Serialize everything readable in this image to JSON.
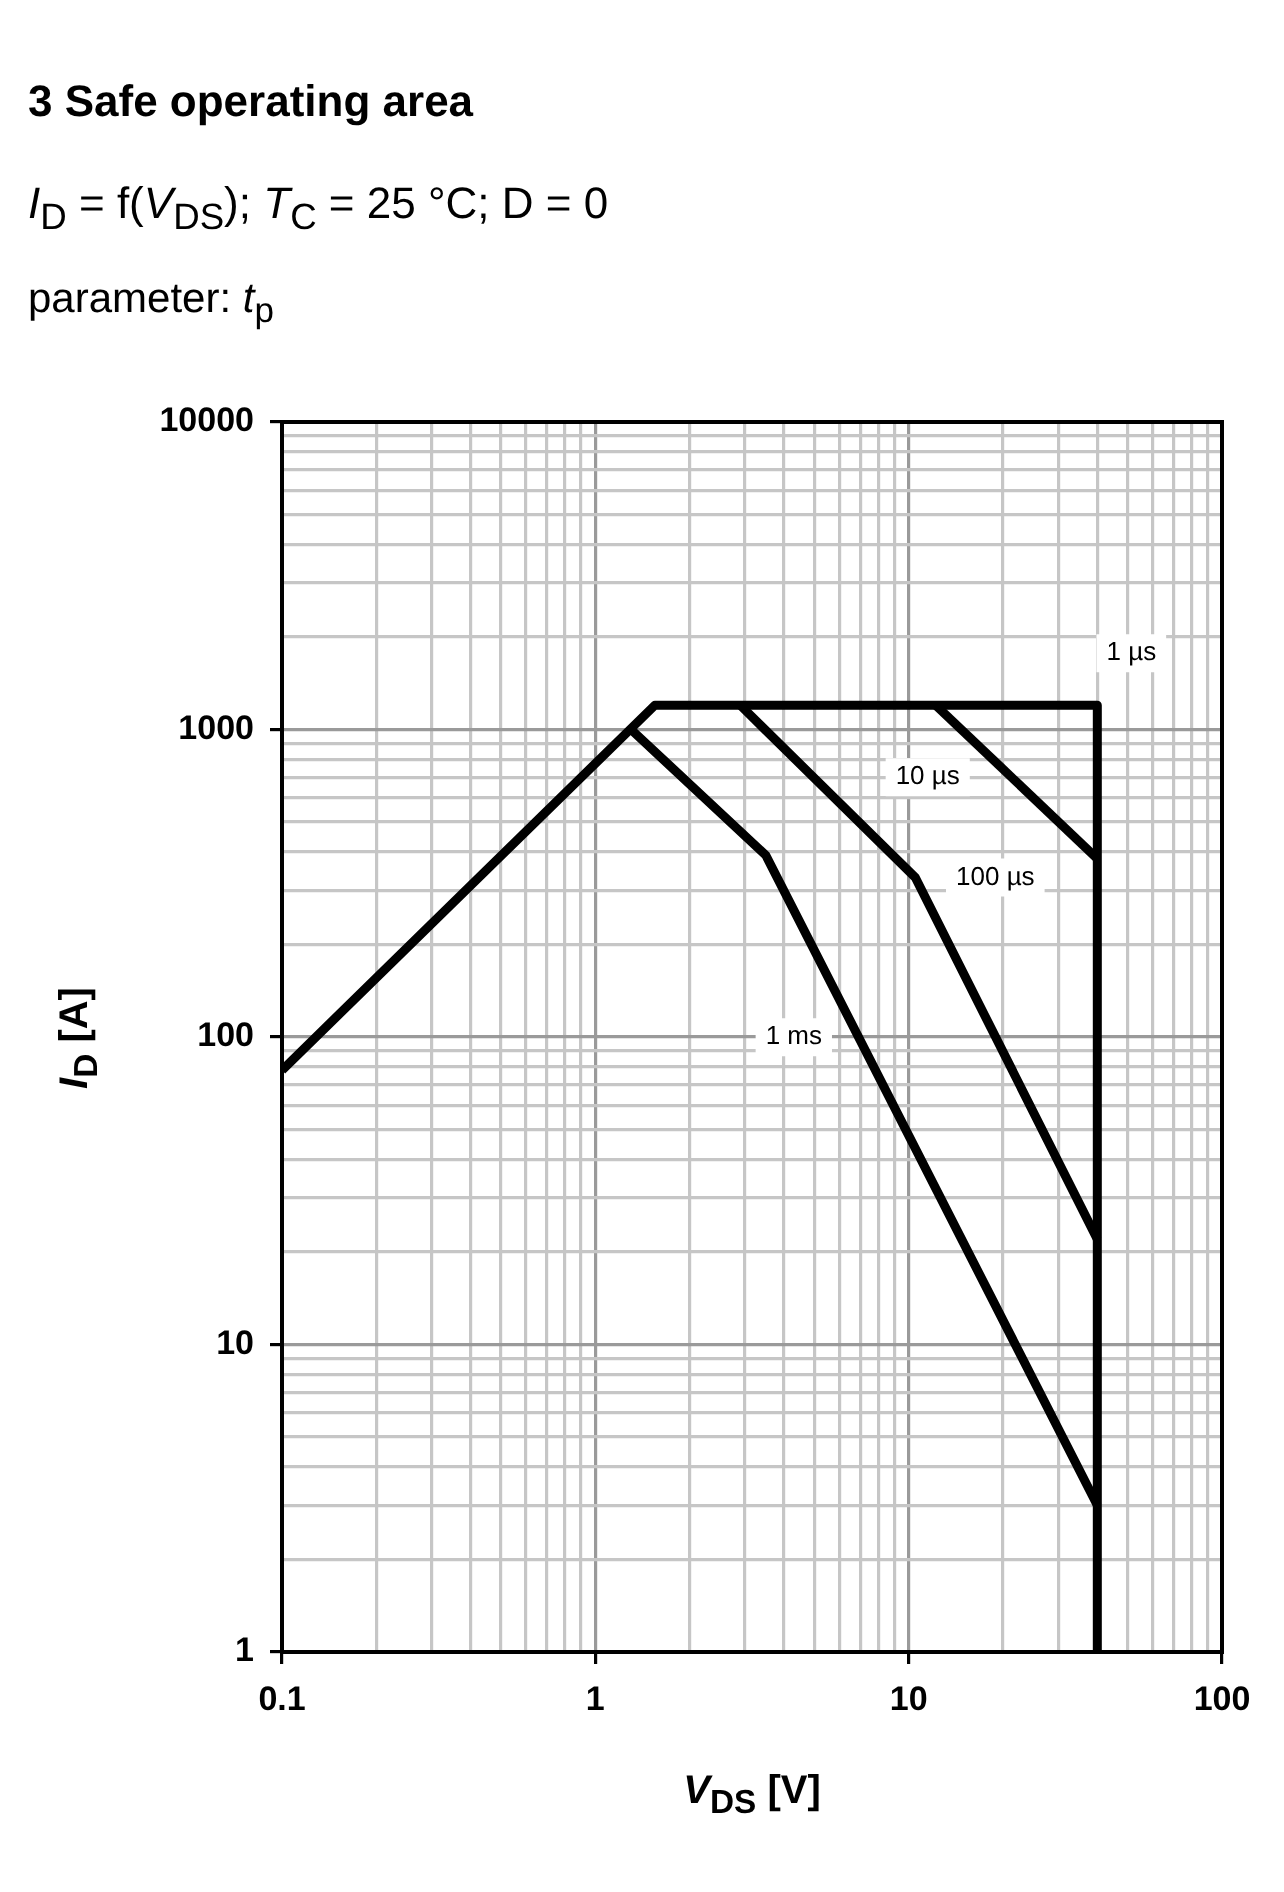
{
  "chart_data": {
    "type": "line",
    "title": "3 Safe operating area",
    "subtitle": "I$_{D}$ = f(V$_{DS}$); T$_{C}$ = 25 °C; D = 0",
    "annotations": [
      "parameter: t$_{p}$"
    ],
    "xlabel": "V$_{DS}$ [V]",
    "ylabel": "I$_{D}$ [A]",
    "log": "xy",
    "grid": true,
    "line_style": "solid",
    "xlim": [
      0.1,
      100
    ],
    "ylim": [
      1,
      10000
    ],
    "xticks": [
      0.1,
      {
        "value": 0.2,
        "label": null
      },
      {
        "value": 0.3,
        "label": null
      },
      {
        "value": 0.4,
        "label": null
      },
      {
        "value": 0.5,
        "label": null
      },
      {
        "value": 0.6,
        "label": null
      },
      {
        "value": 0.7,
        "label": null
      },
      {
        "value": 0.8,
        "label": null
      },
      {
        "value": 0.9,
        "label": null
      },
      1,
      {
        "value": 2,
        "label": null
      },
      {
        "value": 3,
        "label": null
      },
      {
        "value": 4,
        "label": null
      },
      {
        "value": 5,
        "label": null
      },
      {
        "value": 6,
        "label": null
      },
      {
        "value": 7,
        "label": null
      },
      {
        "value": 8,
        "label": null
      },
      {
        "value": 9,
        "label": null
      },
      10,
      {
        "value": 20,
        "label": null
      },
      {
        "value": 30,
        "label": null
      },
      {
        "value": 40,
        "label": null
      },
      {
        "value": 50,
        "label": null
      },
      {
        "value": 60,
        "label": null
      },
      {
        "value": 70,
        "label": null
      },
      {
        "value": 80,
        "label": null
      },
      {
        "value": 90,
        "label": null
      },
      100
    ],
    "yticks": [
      1,
      {
        "value": 2,
        "label": null
      },
      {
        "value": 3,
        "label": null
      },
      {
        "value": 4,
        "label": null
      },
      {
        "value": 5,
        "label": null
      },
      {
        "value": 6,
        "label": null
      },
      {
        "value": 7,
        "label": null
      },
      {
        "value": 8,
        "label": null
      },
      {
        "value": 9,
        "label": null
      },
      10,
      {
        "value": 20,
        "label": null
      },
      {
        "value": 30,
        "label": null
      },
      {
        "value": 40,
        "label": null
      },
      {
        "value": 50,
        "label": null
      },
      {
        "value": 60,
        "label": null
      },
      {
        "value": 70,
        "label": null
      },
      {
        "value": 80,
        "label": null
      },
      {
        "value": 90,
        "label": null
      },
      100,
      {
        "value": 200,
        "label": null
      },
      {
        "value": 300,
        "label": null
      },
      {
        "value": 400,
        "label": null
      },
      {
        "value": 500,
        "label": null
      },
      {
        "value": 600,
        "label": null
      },
      {
        "value": 700,
        "label": null
      },
      {
        "value": 800,
        "label": null
      },
      {
        "value": 900,
        "label": null
      },
      1000,
      {
        "value": 2000,
        "label": null
      },
      {
        "value": 3000,
        "label": null
      },
      {
        "value": 4000,
        "label": null
      },
      {
        "value": 5000,
        "label": null
      },
      {
        "value": 6000,
        "label": null
      },
      {
        "value": 7000,
        "label": null
      },
      {
        "value": 8000,
        "label": null
      },
      {
        "value": 9000,
        "label": null
      },
      10000
    ],
    "series": [
      {
        "name": "1 µs",
        "color": "#000000",
        "x": [
          0.1,
          1.55,
          40,
          40
        ],
        "values": [
          78,
          1200,
          1200,
          1
        ]
      },
      {
        "name": "10 µs",
        "color": "#000000",
        "x": [
          12.2,
          40
        ],
        "values": [
          1200,
          380
        ]
      },
      {
        "name": "100 µs",
        "color": "#000000",
        "x": [
          2.9,
          10.5,
          40
        ],
        "values": [
          1200,
          330,
          22
        ]
      },
      {
        "name": "1 ms",
        "color": "#000000",
        "x": [
          1.3,
          3.5,
          40
        ],
        "values": [
          1000,
          390,
          3
        ]
      }
    ]
  }
}
